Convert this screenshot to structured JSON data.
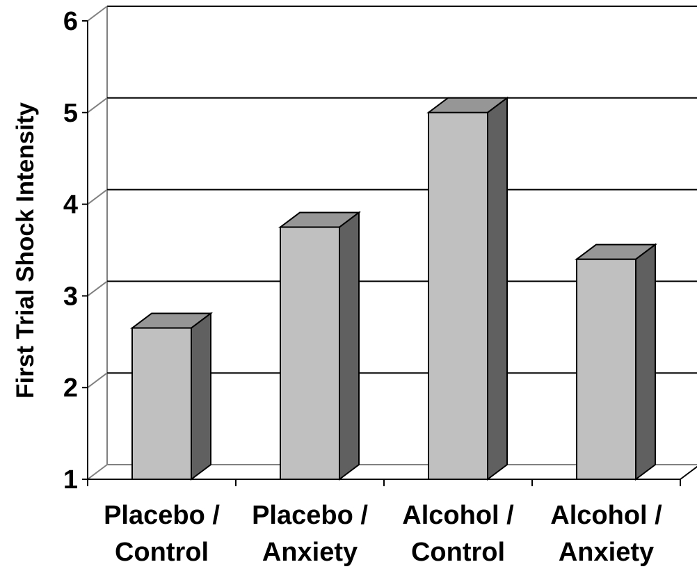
{
  "chart_data": {
    "type": "bar",
    "style": "3d-column",
    "categories": [
      [
        "Placebo /",
        "Control"
      ],
      [
        "Placebo /",
        "Anxiety"
      ],
      [
        "Alcohol /",
        "Control"
      ],
      [
        "Alcohol /",
        "Anxiety"
      ]
    ],
    "values": [
      2.65,
      3.75,
      5.0,
      3.4
    ],
    "ylabel": "First Trial Shock Intensity",
    "xlabel": "",
    "ylim": [
      1,
      6
    ],
    "yticks": [
      "1",
      "2",
      "3",
      "4",
      "5",
      "6"
    ],
    "grid": true,
    "colors": {
      "bar_front": "#c0c0c0",
      "bar_top": "#969696",
      "bar_side": "#606060",
      "gridline": "#000000",
      "wall": "#808080"
    }
  }
}
